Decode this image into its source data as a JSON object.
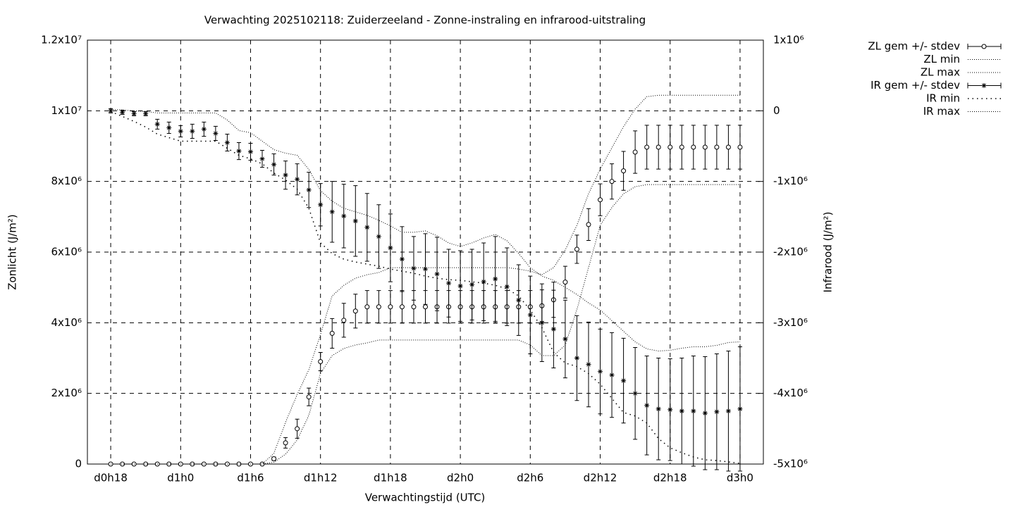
{
  "chart_data": {
    "type": "errorbar-line",
    "title": "Verwachting 2025102118: Zuiderzeeland - Zonne-instraling en infrarood-uitstraling",
    "xlabel": "Verwachtingstijd (UTC)",
    "ylabel": "Zonlicht (J/m²)",
    "y2label": "Infrarood (J/m²)",
    "x": [
      18,
      19,
      20,
      21,
      22,
      23,
      24,
      25,
      26,
      27,
      28,
      29,
      30,
      31,
      32,
      33,
      34,
      35,
      36,
      37,
      38,
      39,
      40,
      41,
      42,
      43,
      44,
      45,
      46,
      47,
      48,
      49,
      50,
      51,
      52,
      53,
      54,
      55,
      56,
      57,
      58,
      59,
      60,
      61,
      62,
      63,
      64,
      65,
      66,
      67,
      68,
      69,
      70,
      71,
      72
    ],
    "xlim": [
      16,
      74
    ],
    "xticks": [
      {
        "value": 18,
        "label": "d0h18"
      },
      {
        "value": 24,
        "label": "d1h0"
      },
      {
        "value": 30,
        "label": "d1h6"
      },
      {
        "value": 36,
        "label": "d1h12"
      },
      {
        "value": 42,
        "label": "d1h18"
      },
      {
        "value": 48,
        "label": "d2h0"
      },
      {
        "value": 54,
        "label": "d2h6"
      },
      {
        "value": 60,
        "label": "d2h12"
      },
      {
        "value": 66,
        "label": "d2h18"
      },
      {
        "value": 72,
        "label": "d3h0"
      }
    ],
    "ylim": [
      0,
      12000000.0
    ],
    "yticks": [
      0,
      {
        "value": 2000000.0,
        "label": "2x10⁶"
      },
      {
        "value": 4000000.0,
        "label": "4x10⁶"
      },
      {
        "value": 6000000.0,
        "label": "6x10⁶"
      },
      {
        "value": 8000000.0,
        "label": "8x10⁶"
      },
      {
        "value": 10000000.0,
        "label": "1x10⁷"
      },
      {
        "value": 12000000.0,
        "label": "1.2x10⁷"
      }
    ],
    "y2lim": [
      -5000000.0,
      1000000.0
    ],
    "y2ticks": [
      {
        "value": -5000000.0,
        "label": "-5x10⁶"
      },
      {
        "value": -4000000.0,
        "label": "-4x10⁶"
      },
      {
        "value": -3000000.0,
        "label": "-3x10⁶"
      },
      {
        "value": -2000000.0,
        "label": "-2x10⁶"
      },
      {
        "value": -1000000.0,
        "label": "-1x10⁶"
      },
      0,
      {
        "value": 1000000.0,
        "label": "1x10⁶"
      }
    ],
    "grid": true,
    "legend": "outside-right",
    "series": [
      {
        "name": "ZL gem +/- stdev",
        "color": "#000000",
        "marker": "circle",
        "values": [
          0,
          0,
          0,
          0,
          0,
          0,
          0,
          0,
          0,
          0,
          0,
          0,
          0,
          0,
          150000.0,
          600000.0,
          1000000.0,
          1900000.0,
          2900000.0,
          3700000.0,
          4070000.0,
          4330000.0,
          4450000.0,
          4450000.0,
          4450000.0,
          4450000.0,
          4450000.0,
          4450000.0,
          4450000.0,
          4450000.0,
          4450000.0,
          4450000.0,
          4450000.0,
          4450000.0,
          4450000.0,
          4450000.0,
          4450000.0,
          4480000.0,
          4650000.0,
          5150000.0,
          6080000.0,
          6780000.0,
          7480000.0,
          8000000.0,
          8300000.0,
          8830000.0,
          8970000.0,
          8970000.0,
          8970000.0,
          8970000.0,
          8970000.0,
          8970000.0,
          8970000.0,
          8970000.0,
          8970000.0
        ],
        "errors": [
          0,
          0,
          0,
          0,
          0,
          0,
          0,
          0,
          0,
          0,
          0,
          0,
          0,
          0,
          50000.0,
          150000.0,
          270000.0,
          250000.0,
          260000.0,
          420000.0,
          480000.0,
          480000.0,
          460000.0,
          460000.0,
          460000.0,
          460000.0,
          460000.0,
          460000.0,
          460000.0,
          460000.0,
          460000.0,
          460000.0,
          460000.0,
          460000.0,
          460000.0,
          460000.0,
          460000.0,
          450000.0,
          500000.0,
          450000.0,
          400000.0,
          450000.0,
          450000.0,
          500000.0,
          550000.0,
          600000.0,
          620000.0,
          620000.0,
          620000.0,
          620000.0,
          620000.0,
          620000.0,
          620000.0,
          620000.0,
          620000.0
        ]
      },
      {
        "name": "ZL min",
        "color": "#000000",
        "dash": "fine",
        "values": [
          0,
          0,
          0,
          0,
          0,
          0,
          0,
          0,
          0,
          0,
          0,
          0,
          0,
          0,
          50000.0,
          280000.0,
          680000.0,
          1380000.0,
          2570000.0,
          3070000.0,
          3270000.0,
          3370000.0,
          3430000.0,
          3510000.0,
          3510000.0,
          3510000.0,
          3510000.0,
          3510000.0,
          3510000.0,
          3510000.0,
          3510000.0,
          3510000.0,
          3510000.0,
          3510000.0,
          3510000.0,
          3510000.0,
          3370000.0,
          3070000.0,
          3070000.0,
          3370000.0,
          4370000.0,
          5560000.0,
          6760000.0,
          7260000.0,
          7650000.0,
          7850000.0,
          7910000.0,
          7910000.0,
          7910000.0,
          7910000.0,
          7910000.0,
          7910000.0,
          7910000.0,
          7910000.0,
          7910000.0
        ]
      },
      {
        "name": "ZL max",
        "color": "#000000",
        "dash": "fine",
        "values": [
          0,
          0,
          0,
          0,
          0,
          0,
          0,
          0,
          0,
          0,
          0,
          0,
          0,
          0,
          300000.0,
          1180000.0,
          1970000.0,
          2670000.0,
          3670000.0,
          4760000.0,
          5060000.0,
          5260000.0,
          5360000.0,
          5420000.0,
          5560000.0,
          5560000.0,
          5560000.0,
          5560000.0,
          5560000.0,
          5560000.0,
          5560000.0,
          5560000.0,
          5560000.0,
          5560000.0,
          5560000.0,
          5520000.0,
          5460000.0,
          5360000.0,
          5560000.0,
          6060000.0,
          6760000.0,
          7650000.0,
          8350000.0,
          8950000.0,
          9550000.0,
          10050000.0,
          10400000.0,
          10440000.0,
          10440000.0,
          10440000.0,
          10440000.0,
          10440000.0,
          10440000.0,
          10440000.0,
          10440000.0
        ]
      },
      {
        "name": "IR gem +/- stdev",
        "color": "#000000",
        "marker": "star",
        "axis": "y2",
        "values": [
          0,
          -20000.0,
          -40000.0,
          -40000.0,
          -190000.0,
          -240000.0,
          -290000.0,
          -290000.0,
          -260000.0,
          -320000.0,
          -450000.0,
          -570000.0,
          -580000.0,
          -680000.0,
          -760000.0,
          -910000.0,
          -970000.0,
          -1120000.0,
          -1330000.0,
          -1430000.0,
          -1490000.0,
          -1560000.0,
          -1650000.0,
          -1780000.0,
          -1940000.0,
          -2100000.0,
          -2230000.0,
          -2240000.0,
          -2310000.0,
          -2440000.0,
          -2480000.0,
          -2460000.0,
          -2420000.0,
          -2380000.0,
          -2490000.0,
          -2680000.0,
          -2890000.0,
          -3000000.0,
          -3090000.0,
          -3230000.0,
          -3500000.0,
          -3590000.0,
          -3690000.0,
          -3740000.0,
          -3820000.0,
          -4000000.0,
          -4170000.0,
          -4220000.0,
          -4230000.0,
          -4250000.0,
          -4250000.0,
          -4280000.0,
          -4260000.0,
          -4250000.0,
          -4220000.0
        ],
        "errors": [
          30000.0,
          30000.0,
          30000.0,
          30000.0,
          70000.0,
          80000.0,
          80000.0,
          100000.0,
          100000.0,
          100000.0,
          120000.0,
          120000.0,
          120000.0,
          120000.0,
          150000.0,
          200000.0,
          220000.0,
          250000.0,
          300000.0,
          430000.0,
          450000.0,
          500000.0,
          480000.0,
          450000.0,
          480000.0,
          460000.0,
          450000.0,
          500000.0,
          520000.0,
          480000.0,
          500000.0,
          500000.0,
          550000.0,
          600000.0,
          550000.0,
          500000.0,
          550000.0,
          550000.0,
          550000.0,
          550000.0,
          600000.0,
          600000.0,
          600000.0,
          600000.0,
          600000.0,
          650000.0,
          700000.0,
          720000.0,
          720000.0,
          750000.0,
          780000.0,
          800000.0,
          820000.0,
          850000.0,
          880000.0
        ]
      },
      {
        "name": "IR min",
        "color": "#000000",
        "dash": "sparse",
        "axis": "y2",
        "values": [
          -10000.0,
          -80000.0,
          -150000.0,
          -230000.0,
          -330000.0,
          -380000.0,
          -430000.0,
          -430000.0,
          -430000.0,
          -430000.0,
          -530000.0,
          -630000.0,
          -680000.0,
          -750000.0,
          -880000.0,
          -980000.0,
          -1110000.0,
          -1380000.0,
          -1870000.0,
          -2020000.0,
          -2100000.0,
          -2140000.0,
          -2170000.0,
          -2200000.0,
          -2240000.0,
          -2270000.0,
          -2300000.0,
          -2340000.0,
          -2370000.0,
          -2390000.0,
          -2400000.0,
          -2420000.0,
          -2440000.0,
          -2470000.0,
          -2520000.0,
          -2620000.0,
          -2820000.0,
          -3070000.0,
          -3420000.0,
          -3570000.0,
          -3620000.0,
          -3720000.0,
          -3870000.0,
          -4070000.0,
          -4270000.0,
          -4320000.0,
          -4420000.0,
          -4640000.0,
          -4770000.0,
          -4840000.0,
          -4900000.0,
          -4940000.0,
          -4950000.0,
          -4970000.0,
          -4990000.0
        ]
      },
      {
        "name": "IR max",
        "color": "#000000",
        "dash": "fine",
        "axis": "y2",
        "values": [
          20000.0,
          10000.0,
          0,
          -10000.0,
          -30000.0,
          -30000.0,
          -30000.0,
          -30000.0,
          -30000.0,
          -30000.0,
          -130000.0,
          -280000.0,
          -310000.0,
          -430000.0,
          -550000.0,
          -600000.0,
          -630000.0,
          -830000.0,
          -1130000.0,
          -1280000.0,
          -1380000.0,
          -1430000.0,
          -1480000.0,
          -1550000.0,
          -1630000.0,
          -1720000.0,
          -1720000.0,
          -1700000.0,
          -1770000.0,
          -1870000.0,
          -1920000.0,
          -1870000.0,
          -1800000.0,
          -1750000.0,
          -1840000.0,
          -2020000.0,
          -2220000.0,
          -2340000.0,
          -2400000.0,
          -2500000.0,
          -2600000.0,
          -2720000.0,
          -2820000.0,
          -2970000.0,
          -3120000.0,
          -3270000.0,
          -3370000.0,
          -3400000.0,
          -3390000.0,
          -3360000.0,
          -3340000.0,
          -3340000.0,
          -3320000.0,
          -3280000.0,
          -3270000.0
        ]
      }
    ]
  }
}
